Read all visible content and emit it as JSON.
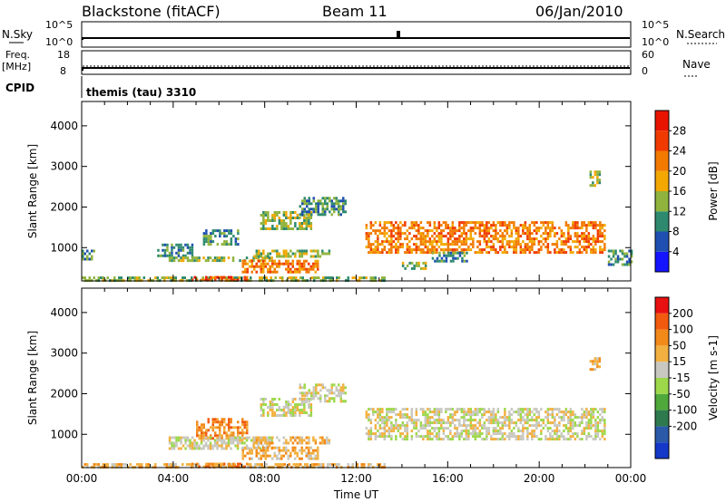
{
  "header": {
    "station": "Blackstone (fitACF)",
    "beam": "Beam 11",
    "date": "06/Jan/2010"
  },
  "strips": {
    "nsky_label": "N.Sky",
    "nsky_ticks": [
      "10^5",
      "10^0"
    ],
    "nsearch_label": "N.Search",
    "freq_label_line1": "Freq.",
    "freq_label_line2": "[MHz]",
    "freq_ticks": [
      "18",
      "8"
    ],
    "freq_right_ticks": [
      "60",
      "0"
    ],
    "nave_label": "Nave",
    "cpid_label": "CPID",
    "cpid_text": "themis (tau) 3310"
  },
  "chart_data": [
    {
      "type": "heatmap",
      "title": "",
      "xlabel": "",
      "ylabel": "Slant Range [km]",
      "x_ticks": [
        "00:00",
        "04:00",
        "08:00",
        "12:00",
        "16:00",
        "20:00",
        "00:00"
      ],
      "y_ticks": [
        1000,
        2000,
        3000,
        4000
      ],
      "ylim": [
        180,
        4600
      ],
      "colorbar": {
        "label": "Power [dB]",
        "ticks": [
          "4",
          "8",
          "12",
          "16",
          "20",
          "24",
          "28"
        ],
        "colors": [
          "#1414ff",
          "#1f4fb0",
          "#2e8a6e",
          "#8fb33c",
          "#f2a800",
          "#f27a00",
          "#f03a00",
          "#e81400"
        ]
      },
      "echo_regions": [
        {
          "t0": 0.0,
          "t1": 0.5,
          "r0": 700,
          "r1": 950,
          "level": 2
        },
        {
          "t0": 0.0,
          "t1": 13.2,
          "r0": 190,
          "r1": 290,
          "level": 3
        },
        {
          "t0": 4.8,
          "t1": 7.2,
          "r0": 200,
          "r1": 300,
          "level": 6
        },
        {
          "t0": 3.3,
          "t1": 4.8,
          "r0": 800,
          "r1": 1100,
          "level": 2
        },
        {
          "t0": 5.3,
          "t1": 6.8,
          "r0": 1100,
          "r1": 1450,
          "level": 2
        },
        {
          "t0": 3.8,
          "t1": 8.3,
          "r0": 650,
          "r1": 780,
          "level": 3
        },
        {
          "t0": 7.0,
          "t1": 10.3,
          "r0": 430,
          "r1": 700,
          "level": 5
        },
        {
          "t0": 7.5,
          "t1": 10.8,
          "r0": 780,
          "r1": 950,
          "level": 3
        },
        {
          "t0": 7.8,
          "t1": 10.0,
          "r0": 1450,
          "r1": 1900,
          "level": 3
        },
        {
          "t0": 9.5,
          "t1": 11.5,
          "r0": 1800,
          "r1": 2250,
          "level": 2
        },
        {
          "t0": 12.4,
          "t1": 22.9,
          "r0": 900,
          "r1": 1650,
          "level": 5
        },
        {
          "t0": 15.3,
          "t1": 16.8,
          "r0": 650,
          "r1": 900,
          "level": 2
        },
        {
          "t0": 14.0,
          "t1": 15.0,
          "r0": 450,
          "r1": 650,
          "level": 3
        },
        {
          "t0": 22.2,
          "t1": 22.6,
          "r0": 2550,
          "r1": 2900,
          "level": 3
        },
        {
          "t0": 23.0,
          "t1": 24.0,
          "r0": 600,
          "r1": 950,
          "level": 2
        }
      ]
    },
    {
      "type": "heatmap",
      "title": "",
      "xlabel": "Time UT",
      "ylabel": "Slant Range [km]",
      "x_ticks": [
        "00:00",
        "04:00",
        "08:00",
        "12:00",
        "16:00",
        "20:00",
        "00:00"
      ],
      "y_ticks": [
        1000,
        2000,
        3000,
        4000
      ],
      "ylim": [
        180,
        4600
      ],
      "colorbar": {
        "label": "Velocity [m s-1]",
        "ticks": [
          "200",
          "100",
          "50",
          "15",
          "-15",
          "-50",
          "-100",
          "-200"
        ],
        "colors": [
          "#1438c8",
          "#2a5aa8",
          "#2e7a4e",
          "#4fa83a",
          "#9cd84a",
          "#c8c8c0",
          "#f2b040",
          "#f28a1a",
          "#f25a10",
          "#e81010"
        ]
      },
      "echo_regions": [
        {
          "t0": 0.0,
          "t1": 13.2,
          "r0": 190,
          "r1": 290,
          "level": 6
        },
        {
          "t0": 4.8,
          "t1": 7.2,
          "r0": 200,
          "r1": 300,
          "level": 7
        },
        {
          "t0": 5.0,
          "t1": 7.2,
          "r0": 900,
          "r1": 1400,
          "level": 7
        },
        {
          "t0": 3.8,
          "t1": 8.3,
          "r0": 650,
          "r1": 950,
          "level": 5
        },
        {
          "t0": 7.0,
          "t1": 10.3,
          "r0": 430,
          "r1": 700,
          "level": 6
        },
        {
          "t0": 7.5,
          "t1": 10.8,
          "r0": 780,
          "r1": 950,
          "level": 6
        },
        {
          "t0": 7.8,
          "t1": 10.0,
          "r0": 1450,
          "r1": 1900,
          "level": 5
        },
        {
          "t0": 9.5,
          "t1": 11.5,
          "r0": 1800,
          "r1": 2250,
          "level": 5
        },
        {
          "t0": 12.4,
          "t1": 22.9,
          "r0": 900,
          "r1": 1650,
          "level": 5
        },
        {
          "t0": 22.2,
          "t1": 22.6,
          "r0": 2550,
          "r1": 2900,
          "level": 6
        }
      ]
    }
  ]
}
